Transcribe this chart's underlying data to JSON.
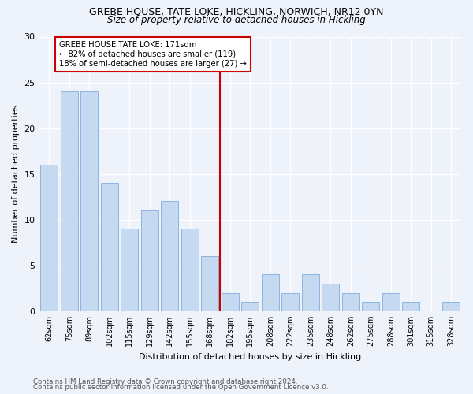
{
  "title1": "GREBE HOUSE, TATE LOKE, HICKLING, NORWICH, NR12 0YN",
  "title2": "Size of property relative to detached houses in Hickling",
  "xlabel": "Distribution of detached houses by size in Hickling",
  "ylabel": "Number of detached properties",
  "categories": [
    "62sqm",
    "75sqm",
    "89sqm",
    "102sqm",
    "115sqm",
    "129sqm",
    "142sqm",
    "155sqm",
    "168sqm",
    "182sqm",
    "195sqm",
    "208sqm",
    "222sqm",
    "235sqm",
    "248sqm",
    "262sqm",
    "275sqm",
    "288sqm",
    "301sqm",
    "315sqm",
    "328sqm"
  ],
  "values": [
    16,
    24,
    24,
    14,
    9,
    11,
    12,
    9,
    6,
    2,
    1,
    4,
    2,
    4,
    3,
    2,
    1,
    2,
    1,
    0,
    1
  ],
  "bar_color": "#c5d9f1",
  "bar_edge_color": "#8db4e2",
  "property_line_x": 8.5,
  "annotation_line1": "GREBE HOUSE TATE LOKE: 171sqm",
  "annotation_line2": "← 82% of detached houses are smaller (119)",
  "annotation_line3": "18% of semi-detached houses are larger (27) →",
  "annotation_box_color": "#ffffff",
  "annotation_box_edge": "#cc0000",
  "vline_color": "#cc0000",
  "bg_color": "#eef2fa",
  "footer1": "Contains HM Land Registry data © Crown copyright and database right 2024.",
  "footer2": "Contains public sector information licensed under the Open Government Licence v3.0.",
  "ylim": [
    0,
    30
  ],
  "yticks": [
    0,
    5,
    10,
    15,
    20,
    25,
    30
  ]
}
